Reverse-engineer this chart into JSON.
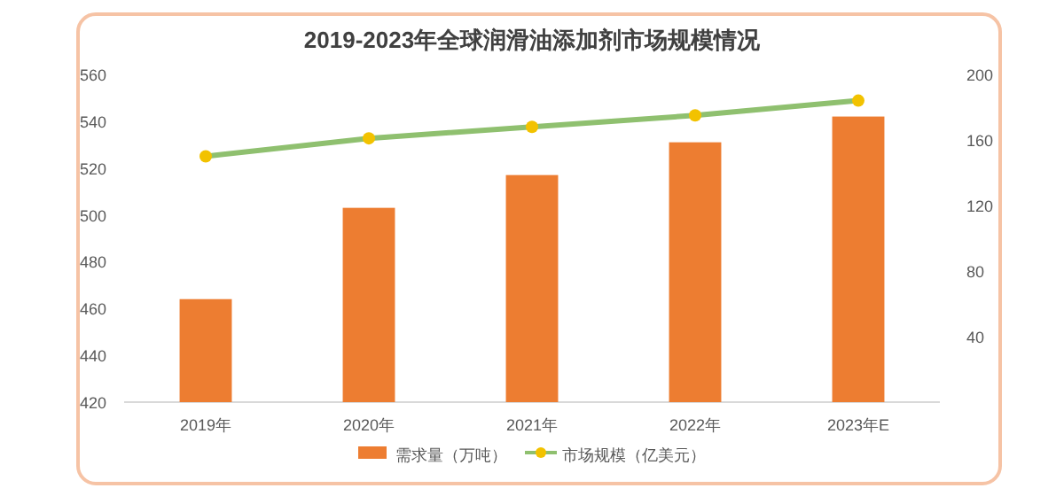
{
  "chart_data": {
    "type": "bar",
    "title": "2019-2023年全球润滑油添加剂市场规模情况",
    "categories": [
      "2019年",
      "2020年",
      "2021年",
      "2022年",
      "2023年E"
    ],
    "series": [
      {
        "name": "需求量（万吨）",
        "color": "#ed7d31",
        "values": [
          464,
          503,
          517,
          531,
          542
        ]
      },
      {
        "name": "市场规模（亿美元）",
        "type": "line",
        "axis": "y2",
        "color": "#8fc06f",
        "colors": [
          "#f2c200",
          "#f2c200",
          "#f2c200",
          "#f2c200",
          "#f2c200"
        ],
        "marker": "circle",
        "values": [
          150,
          161,
          168,
          175,
          184
        ]
      }
    ],
    "ylim": [
      420,
      560
    ],
    "yticks": [
      420,
      440,
      460,
      480,
      500,
      520,
      540,
      560
    ],
    "y2lim": [
      0,
      200
    ],
    "y2ticks": [
      40,
      80,
      120,
      160,
      200
    ],
    "grid": false,
    "legend": "bottom"
  }
}
